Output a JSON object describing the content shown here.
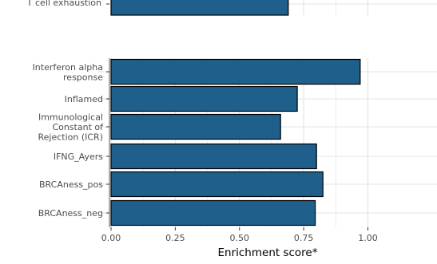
{
  "chart_data": [
    {
      "type": "bar",
      "orientation": "horizontal",
      "categories": [
        "T cell exhaustion"
      ],
      "values": [
        0.69
      ],
      "xlim": [
        0,
        1.0
      ],
      "grid": true
    },
    {
      "type": "bar",
      "orientation": "horizontal",
      "categories": [
        "Interferon alpha response",
        "Inflamed",
        "Immunological Constant of Rejection (ICR)",
        "IFNG_Ayers",
        "BRCAness_pos",
        "BRCAness_neg"
      ],
      "category_labels": [
        [
          "Interferon alpha",
          "response"
        ],
        [
          "Inflamed"
        ],
        [
          "Immunological",
          "Constant of",
          "Rejection (ICR)"
        ],
        [
          "IFNG_Ayers"
        ],
        [
          "BRCAness_pos"
        ],
        [
          "BRCAness_neg"
        ]
      ],
      "values": [
        0.97,
        0.725,
        0.66,
        0.8,
        0.825,
        0.795
      ],
      "xlabel": "Enrichment score*",
      "xticks": [
        0.0,
        0.25,
        0.5,
        0.75,
        1.0
      ],
      "xtick_labels": [
        "0.00",
        "0.25",
        "0.50",
        "0.75",
        "1.00"
      ],
      "xlim": [
        -0.015,
        1.01
      ],
      "grid": true
    }
  ],
  "colors": {
    "bar_fill": "#1f5f8c",
    "bar_stroke": "#000000",
    "grid": "#e3e3e3",
    "axis_text": "#4d4d4d",
    "title_text": "#000000"
  }
}
